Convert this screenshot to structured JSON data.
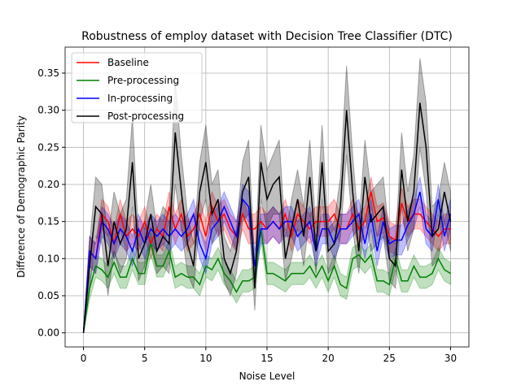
{
  "chart_data": {
    "type": "line",
    "title": "Robustness of employ dataset with Decision Tree Classifier (DTC)",
    "x_label": "Noise Level",
    "y_label": "Difference of Demographic Parity",
    "x": [
      0,
      0.5,
      1,
      1.5,
      2,
      2.5,
      3,
      3.5,
      4,
      4.5,
      5,
      5.5,
      6,
      6.5,
      7,
      7.5,
      8,
      8.5,
      9,
      9.5,
      10,
      10.5,
      11,
      11.5,
      12,
      12.5,
      13,
      13.5,
      14,
      14.5,
      15,
      15.5,
      16,
      16.5,
      17,
      17.5,
      18,
      18.5,
      19,
      19.5,
      20,
      20.5,
      21,
      21.5,
      22,
      22.5,
      23,
      23.5,
      24,
      24.5,
      25,
      25.5,
      26,
      26.5,
      27,
      27.5,
      28,
      28.5,
      29,
      29.5,
      30
    ],
    "xlim": [
      -1.5,
      31.5
    ],
    "xticks": [
      0,
      5,
      10,
      15,
      20,
      25,
      30
    ],
    "ylim": [
      -0.019,
      0.385
    ],
    "yticks": [
      {
        "value": 0,
        "label": "0.00"
      },
      {
        "value": 0.05,
        "label": "0.05"
      },
      {
        "value": 0.1,
        "label": "0.10"
      },
      {
        "value": 0.15,
        "label": "0.15"
      },
      {
        "value": 0.2,
        "label": "0.20"
      },
      {
        "value": 0.25,
        "label": "0.25"
      },
      {
        "value": 0.3,
        "label": "0.30"
      },
      {
        "value": 0.35,
        "label": "0.35"
      }
    ],
    "grid": true,
    "legend": "upper left",
    "series": [
      {
        "name": "Baseline",
        "color": "#ff0000",
        "values": [
          0,
          0.11,
          0.1,
          0.16,
          0.15,
          0.12,
          0.16,
          0.13,
          0.14,
          0.13,
          0.15,
          0.12,
          0.14,
          0.13,
          0.17,
          0.14,
          0.16,
          0.13,
          0.14,
          0.16,
          0.13,
          0.17,
          0.15,
          0.16,
          0.14,
          0.13,
          0.16,
          0.14,
          0.14,
          0.15,
          0.14,
          0.15,
          0.14,
          0.16,
          0.13,
          0.16,
          0.15,
          0.14,
          0.15,
          0.15,
          0.15,
          0.16,
          0.14,
          0.14,
          0.16,
          0.14,
          0.15,
          0.19,
          0.15,
          0.155,
          0.13,
          0.125,
          0.175,
          0.15,
          0.16,
          0.16,
          0.15,
          0.14,
          0.13,
          0.14,
          0.14
        ],
        "errors": [
          0,
          0.02,
          0.02,
          0.02,
          0.02,
          0.02,
          0.02,
          0.02,
          0.02,
          0.02,
          0.02,
          0.02,
          0.02,
          0.02,
          0.02,
          0.02,
          0.02,
          0.02,
          0.02,
          0.02,
          0.02,
          0.02,
          0.02,
          0.02,
          0.02,
          0.02,
          0.02,
          0.02,
          0.02,
          0.02,
          0.02,
          0.02,
          0.02,
          0.02,
          0.02,
          0.02,
          0.02,
          0.02,
          0.02,
          0.02,
          0.02,
          0.02,
          0.02,
          0.02,
          0.02,
          0.02,
          0.02,
          0.02,
          0.02,
          0.02,
          0.02,
          0.02,
          0.02,
          0.02,
          0.02,
          0.02,
          0.02,
          0.02,
          0.02,
          0.02,
          0.02
        ]
      },
      {
        "name": "Pre-processing",
        "color": "#008000",
        "values": [
          0,
          0.06,
          0.09,
          0.085,
          0.075,
          0.095,
          0.075,
          0.075,
          0.1,
          0.08,
          0.08,
          0.12,
          0.09,
          0.09,
          0.11,
          0.075,
          0.08,
          0.075,
          0.075,
          0.065,
          0.09,
          0.085,
          0.1,
          0.08,
          0.07,
          0.055,
          0.07,
          0.07,
          0.075,
          0.14,
          0.08,
          0.08,
          0.075,
          0.07,
          0.08,
          0.08,
          0.08,
          0.09,
          0.075,
          0.09,
          0.07,
          0.09,
          0.065,
          0.06,
          0.1,
          0.105,
          0.095,
          0.105,
          0.07,
          0.07,
          0.065,
          0.1,
          0.07,
          0.07,
          0.09,
          0.075,
          0.075,
          0.08,
          0.1,
          0.085,
          0.08
        ],
        "errors": [
          0,
          0.015,
          0.015,
          0.015,
          0.015,
          0.015,
          0.015,
          0.015,
          0.015,
          0.015,
          0.015,
          0.015,
          0.015,
          0.015,
          0.015,
          0.015,
          0.015,
          0.015,
          0.015,
          0.015,
          0.015,
          0.015,
          0.015,
          0.015,
          0.015,
          0.015,
          0.015,
          0.015,
          0.015,
          0.015,
          0.015,
          0.015,
          0.015,
          0.015,
          0.015,
          0.015,
          0.015,
          0.015,
          0.015,
          0.015,
          0.015,
          0.015,
          0.015,
          0.015,
          0.015,
          0.015,
          0.015,
          0.015,
          0.015,
          0.015,
          0.015,
          0.015,
          0.015,
          0.015,
          0.015,
          0.015,
          0.015,
          0.015,
          0.015,
          0.015,
          0.015
        ]
      },
      {
        "name": "In-processing",
        "color": "#0000ff",
        "values": [
          0,
          0.11,
          0.1,
          0.15,
          0.14,
          0.12,
          0.14,
          0.13,
          0.11,
          0.14,
          0.12,
          0.14,
          0.13,
          0.14,
          0.13,
          0.14,
          0.13,
          0.14,
          0.16,
          0.12,
          0.1,
          0.14,
          0.15,
          0.17,
          0.15,
          0.13,
          0.18,
          0.17,
          0.09,
          0.14,
          0.14,
          0.15,
          0.14,
          0.15,
          0.15,
          0.13,
          0.14,
          0.15,
          0.11,
          0.14,
          0.14,
          0.12,
          0.14,
          0.14,
          0.15,
          0.16,
          0.12,
          0.16,
          0.11,
          0.15,
          0.12,
          0.125,
          0.125,
          0.145,
          0.16,
          0.19,
          0.14,
          0.13,
          0.18,
          0.13,
          0.16
        ],
        "errors": [
          0,
          0.02,
          0.02,
          0.02,
          0.02,
          0.02,
          0.02,
          0.02,
          0.02,
          0.02,
          0.02,
          0.02,
          0.02,
          0.02,
          0.02,
          0.02,
          0.02,
          0.02,
          0.02,
          0.02,
          0.02,
          0.02,
          0.02,
          0.02,
          0.02,
          0.02,
          0.02,
          0.02,
          0.02,
          0.02,
          0.02,
          0.02,
          0.02,
          0.02,
          0.02,
          0.02,
          0.02,
          0.02,
          0.02,
          0.02,
          0.02,
          0.02,
          0.02,
          0.02,
          0.02,
          0.02,
          0.02,
          0.02,
          0.02,
          0.02,
          0.02,
          0.02,
          0.02,
          0.02,
          0.02,
          0.02,
          0.02,
          0.02,
          0.02,
          0.02,
          0.02
        ]
      },
      {
        "name": "Post-processing",
        "color": "#000000",
        "values": [
          0,
          0.09,
          0.17,
          0.16,
          0.09,
          0.15,
          0.12,
          0.14,
          0.23,
          0.1,
          0.12,
          0.16,
          0.11,
          0.13,
          0.12,
          0.27,
          0.19,
          0.12,
          0.09,
          0.19,
          0.23,
          0.16,
          0.18,
          0.1,
          0.08,
          0.11,
          0.19,
          0.21,
          0.06,
          0.23,
          0.18,
          0.2,
          0.21,
          0.1,
          0.14,
          0.18,
          0.13,
          0.21,
          0.11,
          0.23,
          0.11,
          0.12,
          0.17,
          0.3,
          0.19,
          0.11,
          0.21,
          0.15,
          0.16,
          0.17,
          0.1,
          0.09,
          0.22,
          0.15,
          0.19,
          0.31,
          0.25,
          0.13,
          0.14,
          0.19,
          0.15
        ],
        "errors": [
          0,
          0.03,
          0.04,
          0.04,
          0.04,
          0.04,
          0.04,
          0.04,
          0.06,
          0.03,
          0.03,
          0.04,
          0.03,
          0.04,
          0.04,
          0.07,
          0.05,
          0.04,
          0.03,
          0.04,
          0.05,
          0.04,
          0.04,
          0.03,
          0.03,
          0.03,
          0.04,
          0.05,
          0.03,
          0.05,
          0.04,
          0.04,
          0.05,
          0.03,
          0.04,
          0.04,
          0.04,
          0.05,
          0.03,
          0.05,
          0.03,
          0.03,
          0.04,
          0.06,
          0.05,
          0.03,
          0.05,
          0.04,
          0.04,
          0.04,
          0.03,
          0.03,
          0.05,
          0.04,
          0.05,
          0.06,
          0.06,
          0.04,
          0.04,
          0.04,
          0.04
        ]
      }
    ]
  }
}
